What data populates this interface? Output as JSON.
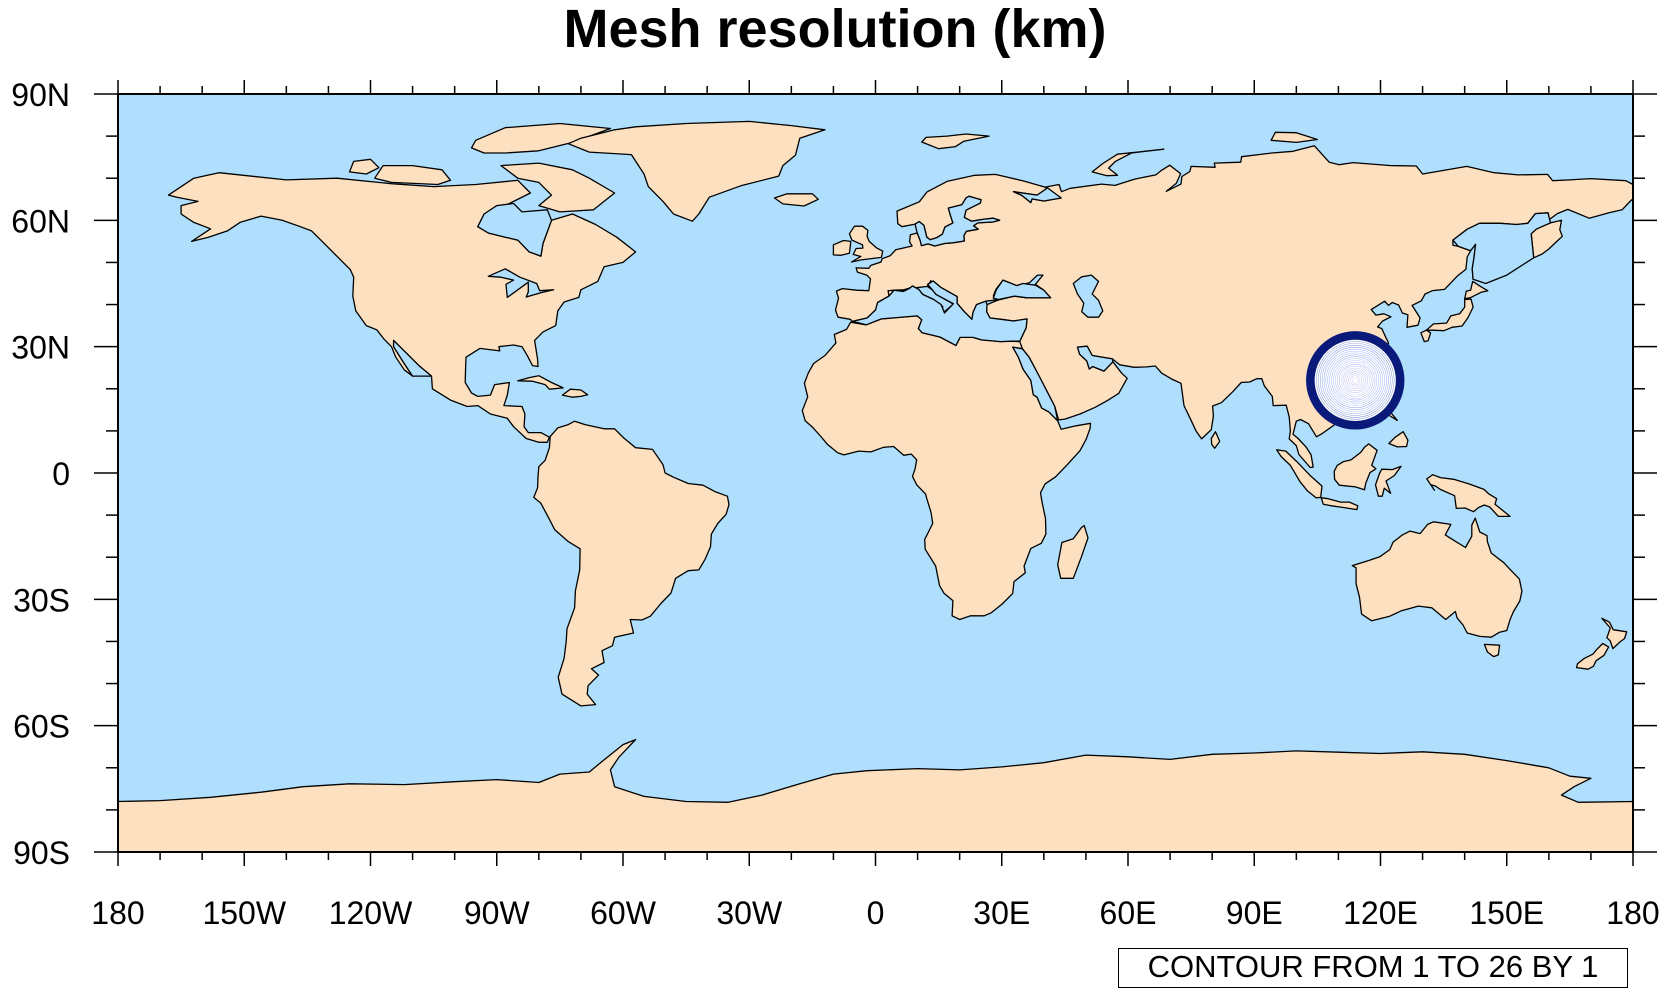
{
  "title": "Mesh resolution (km)",
  "map": {
    "projection": "cylindrical equidistant",
    "lon_range": [
      -180,
      180
    ],
    "lat_range": [
      -90,
      90
    ],
    "ocean_color": "#b0dffd",
    "land_color": "#fde0c0",
    "coast_color": "#000000",
    "lon_ticks": [
      {
        "value": -180,
        "label": "180"
      },
      {
        "value": -150,
        "label": "150W"
      },
      {
        "value": -120,
        "label": "120W"
      },
      {
        "value": -90,
        "label": "90W"
      },
      {
        "value": -60,
        "label": "60W"
      },
      {
        "value": -30,
        "label": "30W"
      },
      {
        "value": 0,
        "label": "0"
      },
      {
        "value": 30,
        "label": "30E"
      },
      {
        "value": 60,
        "label": "60E"
      },
      {
        "value": 90,
        "label": "90E"
      },
      {
        "value": 120,
        "label": "120E"
      },
      {
        "value": 150,
        "label": "150E"
      },
      {
        "value": 180,
        "label": "180"
      }
    ],
    "lat_ticks": [
      {
        "value": 90,
        "label": "90N"
      },
      {
        "value": 60,
        "label": "60N"
      },
      {
        "value": 30,
        "label": "30N"
      },
      {
        "value": 0,
        "label": "0"
      },
      {
        "value": -30,
        "label": "30S"
      },
      {
        "value": -60,
        "label": "60S"
      },
      {
        "value": -90,
        "label": "90S"
      }
    ],
    "minor_tick_step_deg": 10
  },
  "contour": {
    "center_lon": 114,
    "center_lat": 22,
    "min": 1,
    "max": 26,
    "step": 1,
    "ring_spacing_deg": 0.45,
    "fill_inner": "#b6a4e6",
    "fill_mid": "#5a86f0",
    "fill_outer": "#0a1a7a",
    "line_color": "#ffffff",
    "info_label": "CONTOUR FROM 1 TO 26 BY 1"
  }
}
